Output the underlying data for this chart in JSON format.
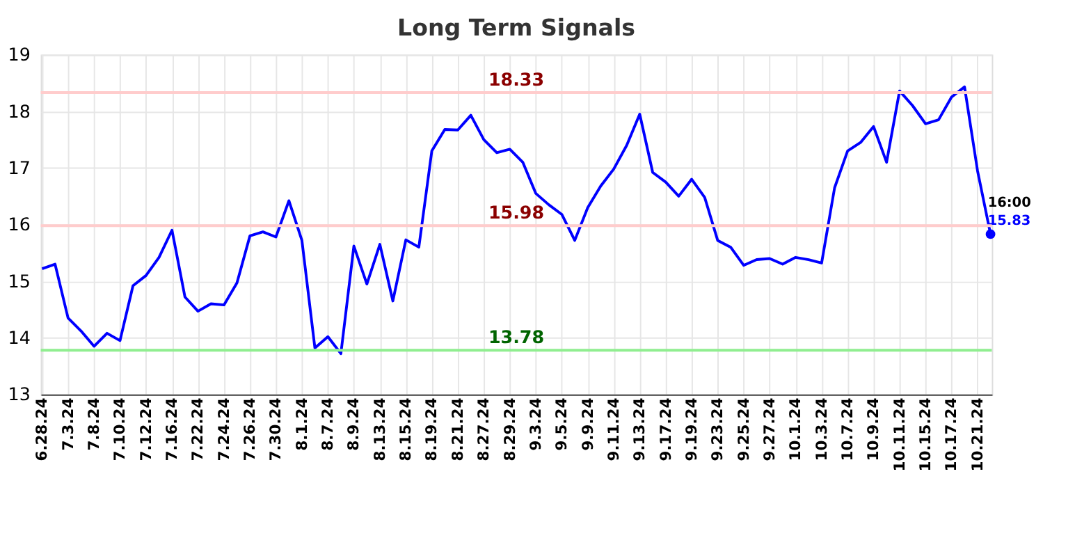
{
  "chart_data": {
    "type": "line",
    "title": "Long Term Signals",
    "categories": [
      "6.28.24",
      null,
      "7.3.24",
      null,
      "7.8.24",
      null,
      "7.10.24",
      null,
      "7.12.24",
      null,
      "7.16.24",
      null,
      "7.22.24",
      null,
      "7.24.24",
      null,
      "7.26.24",
      null,
      "7.30.24",
      null,
      "8.1.24",
      null,
      "8.7.24",
      null,
      "8.9.24",
      null,
      "8.13.24",
      null,
      "8.15.24",
      null,
      "8.19.24",
      null,
      "8.21.24",
      null,
      "8.27.24",
      null,
      "8.29.24",
      null,
      "9.3.24",
      null,
      "9.5.24",
      null,
      "9.9.24",
      null,
      "9.11.24",
      null,
      "9.13.24",
      null,
      "9.17.24",
      null,
      "9.19.24",
      null,
      "9.23.24",
      null,
      "9.25.24",
      null,
      "9.27.24",
      null,
      "10.1.24",
      null,
      "10.3.24",
      null,
      "10.7.24",
      null,
      "10.9.24",
      null,
      "10.11.24",
      null,
      "10.15.24",
      null,
      "10.17.24",
      null,
      "10.21.24",
      null
    ],
    "series": [
      {
        "color": "#0000ff",
        "values": [
          15.22,
          15.3,
          14.35,
          14.12,
          13.85,
          14.08,
          13.95,
          14.92,
          15.1,
          15.42,
          15.9,
          14.72,
          14.47,
          14.6,
          14.58,
          14.97,
          15.8,
          15.87,
          15.78,
          16.42,
          15.72,
          13.82,
          14.02,
          13.72,
          15.62,
          14.95,
          15.65,
          14.65,
          15.73,
          15.6,
          17.3,
          17.68,
          17.67,
          17.93,
          17.5,
          17.27,
          17.33,
          17.1,
          16.55,
          16.35,
          16.18,
          15.72,
          16.3,
          16.68,
          16.98,
          17.4,
          17.95,
          16.92,
          16.75,
          16.5,
          16.8,
          16.48,
          15.72,
          15.6,
          15.28,
          15.38,
          15.4,
          15.3,
          15.42,
          15.38,
          15.32,
          16.65,
          17.3,
          17.45,
          17.73,
          17.1,
          18.36,
          18.1,
          17.78,
          17.85,
          18.25,
          18.43,
          16.95,
          15.83
        ]
      },
      {
        "type": "scatter",
        "color": "#0000ff",
        "marker": "circle",
        "values": [
          null,
          null,
          null,
          null,
          null,
          null,
          null,
          null,
          null,
          null,
          null,
          null,
          null,
          null,
          null,
          null,
          null,
          null,
          null,
          null,
          null,
          null,
          null,
          null,
          null,
          null,
          null,
          null,
          null,
          null,
          null,
          null,
          null,
          null,
          null,
          null,
          null,
          null,
          null,
          null,
          null,
          null,
          null,
          null,
          null,
          null,
          null,
          null,
          null,
          null,
          null,
          null,
          null,
          null,
          null,
          null,
          null,
          null,
          null,
          null,
          null,
          null,
          null,
          null,
          null,
          null,
          null,
          null,
          null,
          null,
          null,
          null,
          null,
          15.83
        ],
        "value_labels": [
          null,
          null,
          null,
          null,
          null,
          null,
          null,
          null,
          null,
          null,
          null,
          null,
          null,
          null,
          null,
          null,
          null,
          null,
          null,
          null,
          null,
          null,
          null,
          null,
          null,
          null,
          null,
          null,
          null,
          null,
          null,
          null,
          null,
          null,
          null,
          null,
          null,
          null,
          null,
          null,
          null,
          null,
          null,
          null,
          null,
          null,
          null,
          null,
          null,
          null,
          null,
          null,
          null,
          null,
          null,
          null,
          null,
          null,
          null,
          null,
          null,
          null,
          null,
          null,
          null,
          null,
          null,
          null,
          null,
          null,
          null,
          null,
          null,
          "15.83"
        ]
      }
    ],
    "annotations": [
      "16:00"
    ],
    "ylim": [
      13,
      19
    ],
    "yticks": [
      13,
      14,
      15,
      16,
      17,
      18,
      19
    ],
    "ref_lines": [
      {
        "axis": "y",
        "value": 18.33,
        "label": "18.33",
        "color": "#ffcccc"
      },
      {
        "axis": "y",
        "value": 15.98,
        "label": "15.98",
        "color": "#ffcccc"
      },
      {
        "axis": "y",
        "value": 13.78,
        "label": "13.78",
        "color": "#90ee90"
      }
    ],
    "grid": true,
    "marker": "none",
    "line_style": "solid"
  }
}
